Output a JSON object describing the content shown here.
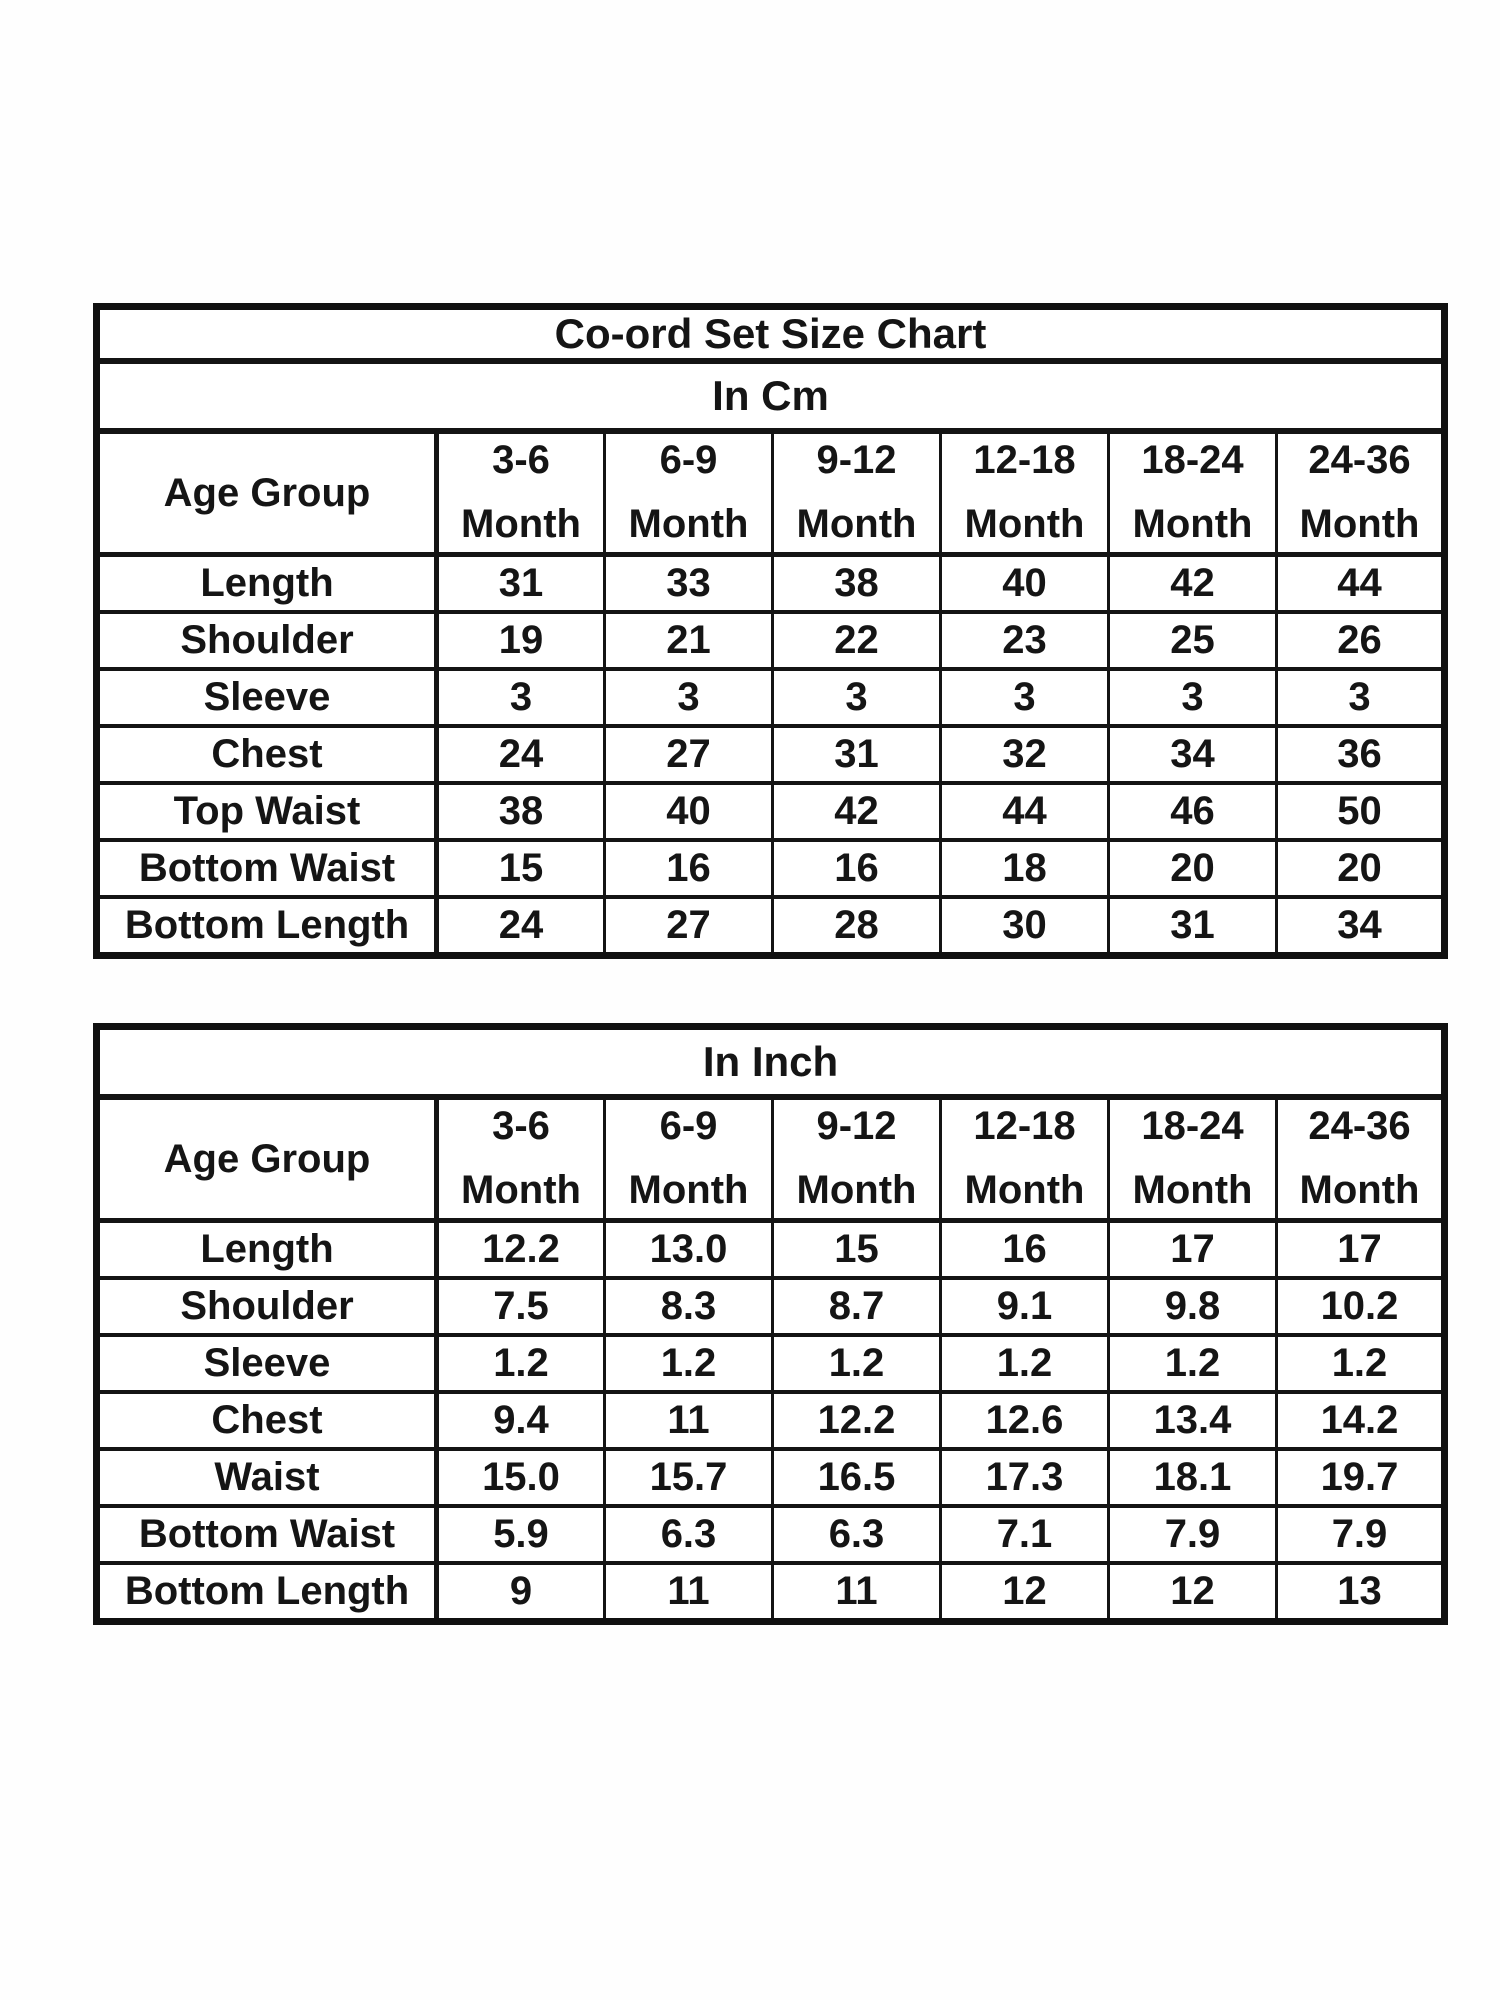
{
  "chart": {
    "title": "Co-ord Set Size Chart",
    "age_group_label": "Age Group",
    "month_label": "Month",
    "age_columns": [
      "3-6",
      "6-9",
      "9-12",
      "12-18",
      "18-24",
      "24-36"
    ]
  },
  "tables": [
    {
      "id": "cm",
      "show_title": true,
      "unit_label": "In Cm",
      "rows": [
        {
          "label": "Length",
          "values": [
            "31",
            "33",
            "38",
            "40",
            "42",
            "44"
          ]
        },
        {
          "label": "Shoulder",
          "values": [
            "19",
            "21",
            "22",
            "23",
            "25",
            "26"
          ]
        },
        {
          "label": "Sleeve",
          "values": [
            "3",
            "3",
            "3",
            "3",
            "3",
            "3"
          ]
        },
        {
          "label": "Chest",
          "values": [
            "24",
            "27",
            "31",
            "32",
            "34",
            "36"
          ]
        },
        {
          "label": "Top Waist",
          "values": [
            "38",
            "40",
            "42",
            "44",
            "46",
            "50"
          ]
        },
        {
          "label": "Bottom Waist",
          "values": [
            "15",
            "16",
            "16",
            "18",
            "20",
            "20"
          ]
        },
        {
          "label": "Bottom Length",
          "values": [
            "24",
            "27",
            "28",
            "30",
            "31",
            "34"
          ]
        }
      ]
    },
    {
      "id": "inch",
      "show_title": false,
      "unit_label": "In Inch",
      "rows": [
        {
          "label": "Length",
          "values": [
            "12.2",
            "13.0",
            "15",
            "16",
            "17",
            "17"
          ]
        },
        {
          "label": "Shoulder",
          "values": [
            "7.5",
            "8.3",
            "8.7",
            "9.1",
            "9.8",
            "10.2"
          ]
        },
        {
          "label": "Sleeve",
          "values": [
            "1.2",
            "1.2",
            "1.2",
            "1.2",
            "1.2",
            "1.2"
          ]
        },
        {
          "label": "Chest",
          "values": [
            "9.4",
            "11",
            "12.2",
            "12.6",
            "13.4",
            "14.2"
          ]
        },
        {
          "label": "Waist",
          "values": [
            "15.0",
            "15.7",
            "16.5",
            "17.3",
            "18.1",
            "19.7"
          ]
        },
        {
          "label": "Bottom Waist",
          "values": [
            "5.9",
            "6.3",
            "6.3",
            "7.1",
            "7.9",
            "7.9"
          ]
        },
        {
          "label": "Bottom Length",
          "values": [
            "9",
            "11",
            "11",
            "12",
            "12",
            "13"
          ]
        }
      ]
    }
  ],
  "colors": {
    "background": "#ffffff",
    "border": "#111111",
    "text": "#151515"
  }
}
